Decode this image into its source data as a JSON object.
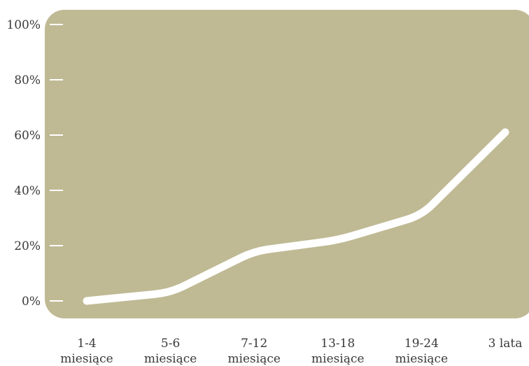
{
  "chart_data": {
    "type": "line",
    "title": "",
    "xlabel": "",
    "ylabel": "",
    "categories": [
      [
        "1-4",
        "miesiące"
      ],
      [
        "5-6",
        "miesiące"
      ],
      [
        "7-12",
        "miesiące"
      ],
      [
        "13-18",
        "miesiące"
      ],
      [
        "19-24",
        "miesiące"
      ],
      [
        "3 lata"
      ]
    ],
    "values": [
      0,
      3,
      18,
      22,
      31,
      61
    ],
    "y_unit": "%",
    "ylim": [
      0,
      100
    ],
    "yticks": [
      0,
      20,
      40,
      60,
      80,
      100
    ],
    "ytick_labels": [
      "0%",
      "20%",
      "40%",
      "60%",
      "80%",
      "100%"
    ],
    "grid": false,
    "legend": "none",
    "colors": {
      "plot_background": "#bfba94",
      "line": "#ffffff",
      "tick": "#ffffff",
      "text": "#3a3a3a"
    }
  }
}
